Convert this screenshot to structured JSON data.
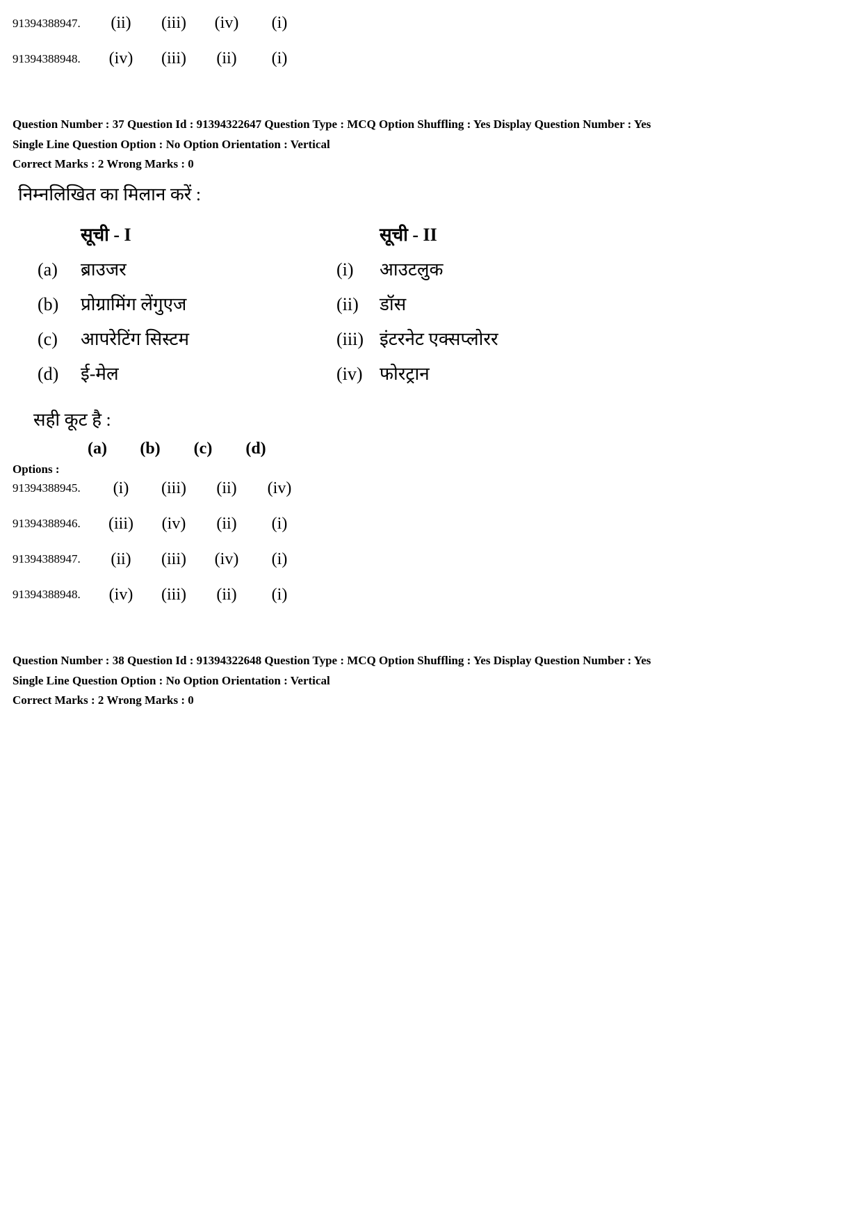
{
  "topOptions": [
    {
      "id": "91394388947.",
      "romans": [
        "(ii)",
        "(iii)",
        "(iv)",
        "(i)"
      ]
    },
    {
      "id": "91394388948.",
      "romans": [
        "(iv)",
        "(iii)",
        "(ii)",
        "(i)"
      ]
    }
  ],
  "q37": {
    "meta_line1": "Question Number : 37  Question Id : 91394322647  Question Type : MCQ  Option Shuffling : Yes  Display Question Number : Yes",
    "meta_line2": "Single Line Question Option : No  Option Orientation : Vertical",
    "marks": "Correct Marks : 2  Wrong Marks : 0",
    "prompt": "निम्नलिखित का मिलान करें :",
    "list1_heading": "सूची - I",
    "list2_heading": "सूची - II",
    "list1": [
      {
        "label": "(a)",
        "text": "ब्राउजर"
      },
      {
        "label": "(b)",
        "text": "प्रोग्रामिंग लेंगुएज"
      },
      {
        "label": "(c)",
        "text": "आपरेटिंग सिस्टम"
      },
      {
        "label": "(d)",
        "text": "ई-मेल"
      }
    ],
    "list2": [
      {
        "label": "(i)",
        "text": "आउटलुक"
      },
      {
        "label": "(ii)",
        "text": "डॉस"
      },
      {
        "label": "(iii)",
        "text": "इंटरनेट एक्सप्लोरर"
      },
      {
        "label": "(iv)",
        "text": "फोरट्रान"
      }
    ],
    "correct_code_text": "सही कूट है :",
    "codes_header": [
      "(a)",
      "(b)",
      "(c)",
      "(d)"
    ],
    "options_label": "Options :",
    "options": [
      {
        "id": "91394388945.",
        "romans": [
          "(i)",
          "(iii)",
          "(ii)",
          "(iv)"
        ]
      },
      {
        "id": "91394388946.",
        "romans": [
          "(iii)",
          "(iv)",
          "(ii)",
          "(i)"
        ]
      },
      {
        "id": "91394388947.",
        "romans": [
          "(ii)",
          "(iii)",
          "(iv)",
          "(i)"
        ]
      },
      {
        "id": "91394388948.",
        "romans": [
          "(iv)",
          "(iii)",
          "(ii)",
          "(i)"
        ]
      }
    ]
  },
  "q38": {
    "meta_line1": "Question Number : 38  Question Id : 91394322648  Question Type : MCQ  Option Shuffling : Yes  Display Question Number : Yes",
    "meta_line2": "Single Line Question Option : No  Option Orientation : Vertical",
    "marks": "Correct Marks : 2  Wrong Marks : 0"
  }
}
